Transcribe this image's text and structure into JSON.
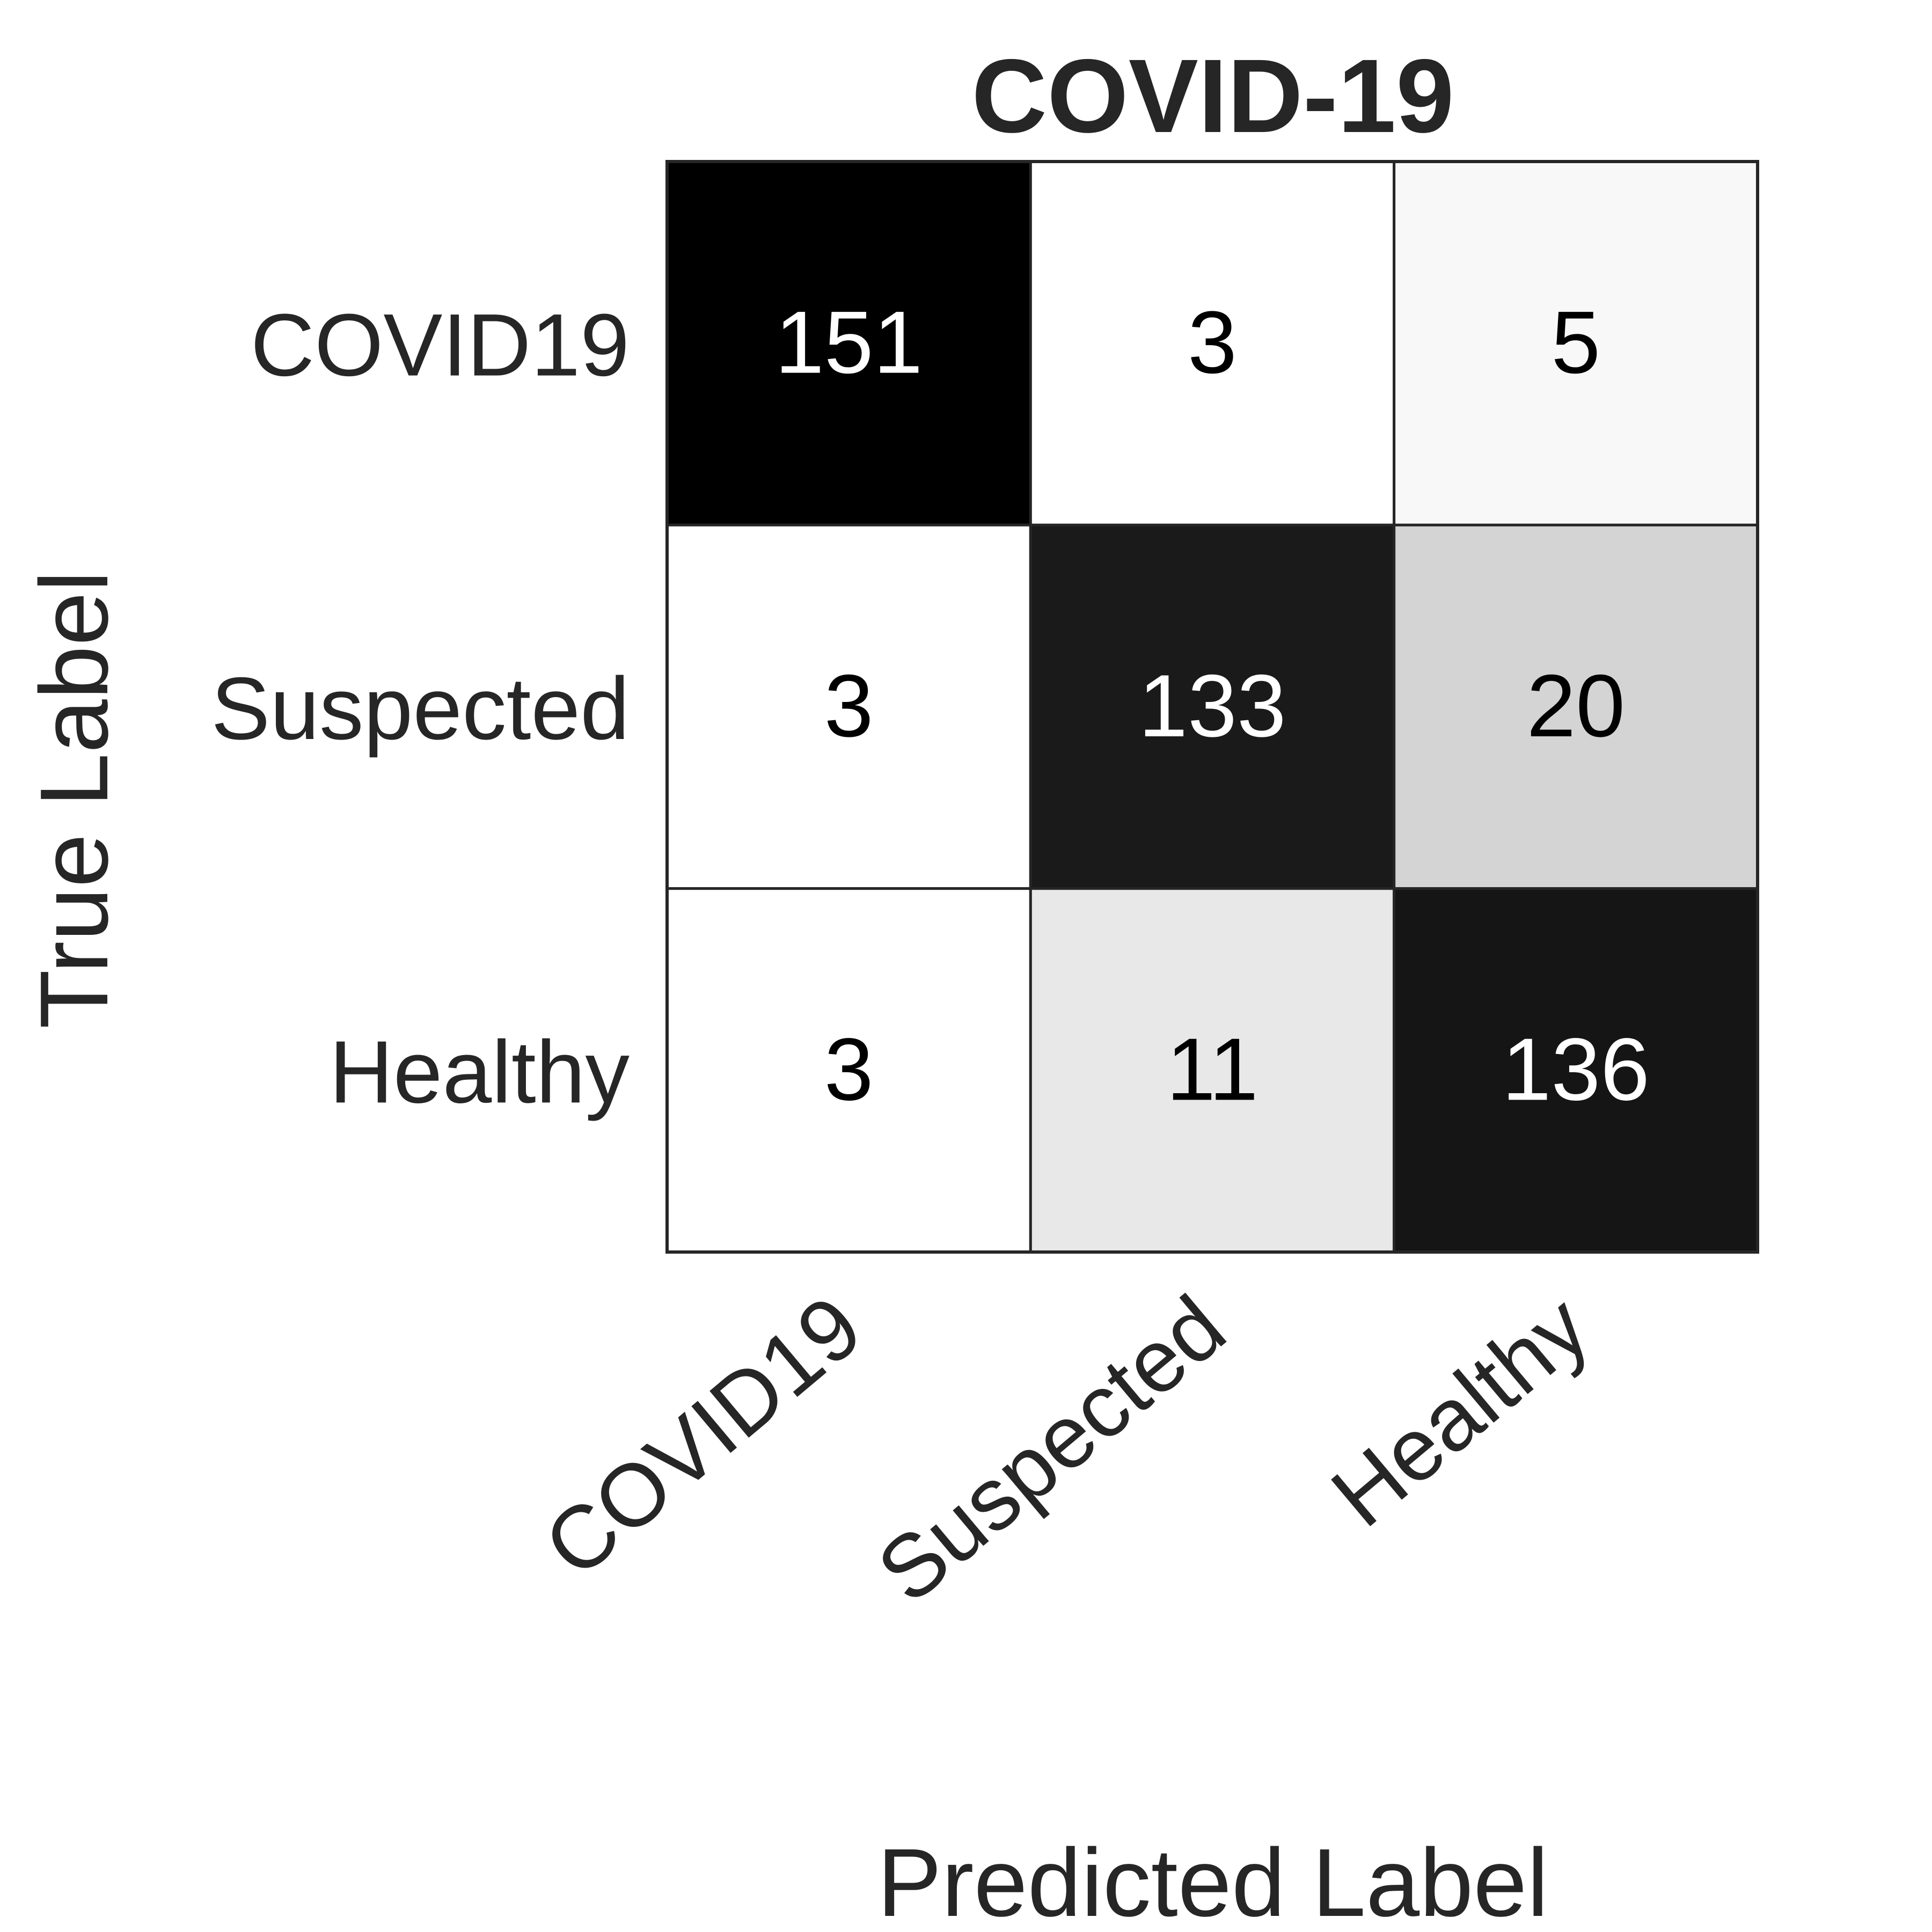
{
  "chart_data": {
    "type": "heatmap",
    "title": "COVID-19",
    "xlabel": "Predicted Label",
    "ylabel": "True Label",
    "x_categories": [
      "COVID19",
      "Suspected",
      "Healthy"
    ],
    "y_categories": [
      "COVID19",
      "Suspected",
      "Healthy"
    ],
    "matrix": [
      [
        151,
        3,
        5
      ],
      [
        3,
        133,
        20
      ],
      [
        3,
        11,
        136
      ]
    ],
    "colormap": "greys",
    "vmin": 3,
    "vmax": 151,
    "grid": true,
    "colors": {
      "low": "#ffffff",
      "high": "#000000",
      "text": "#262626",
      "text_on_dark": "#ffffff",
      "border": "#262626"
    }
  }
}
